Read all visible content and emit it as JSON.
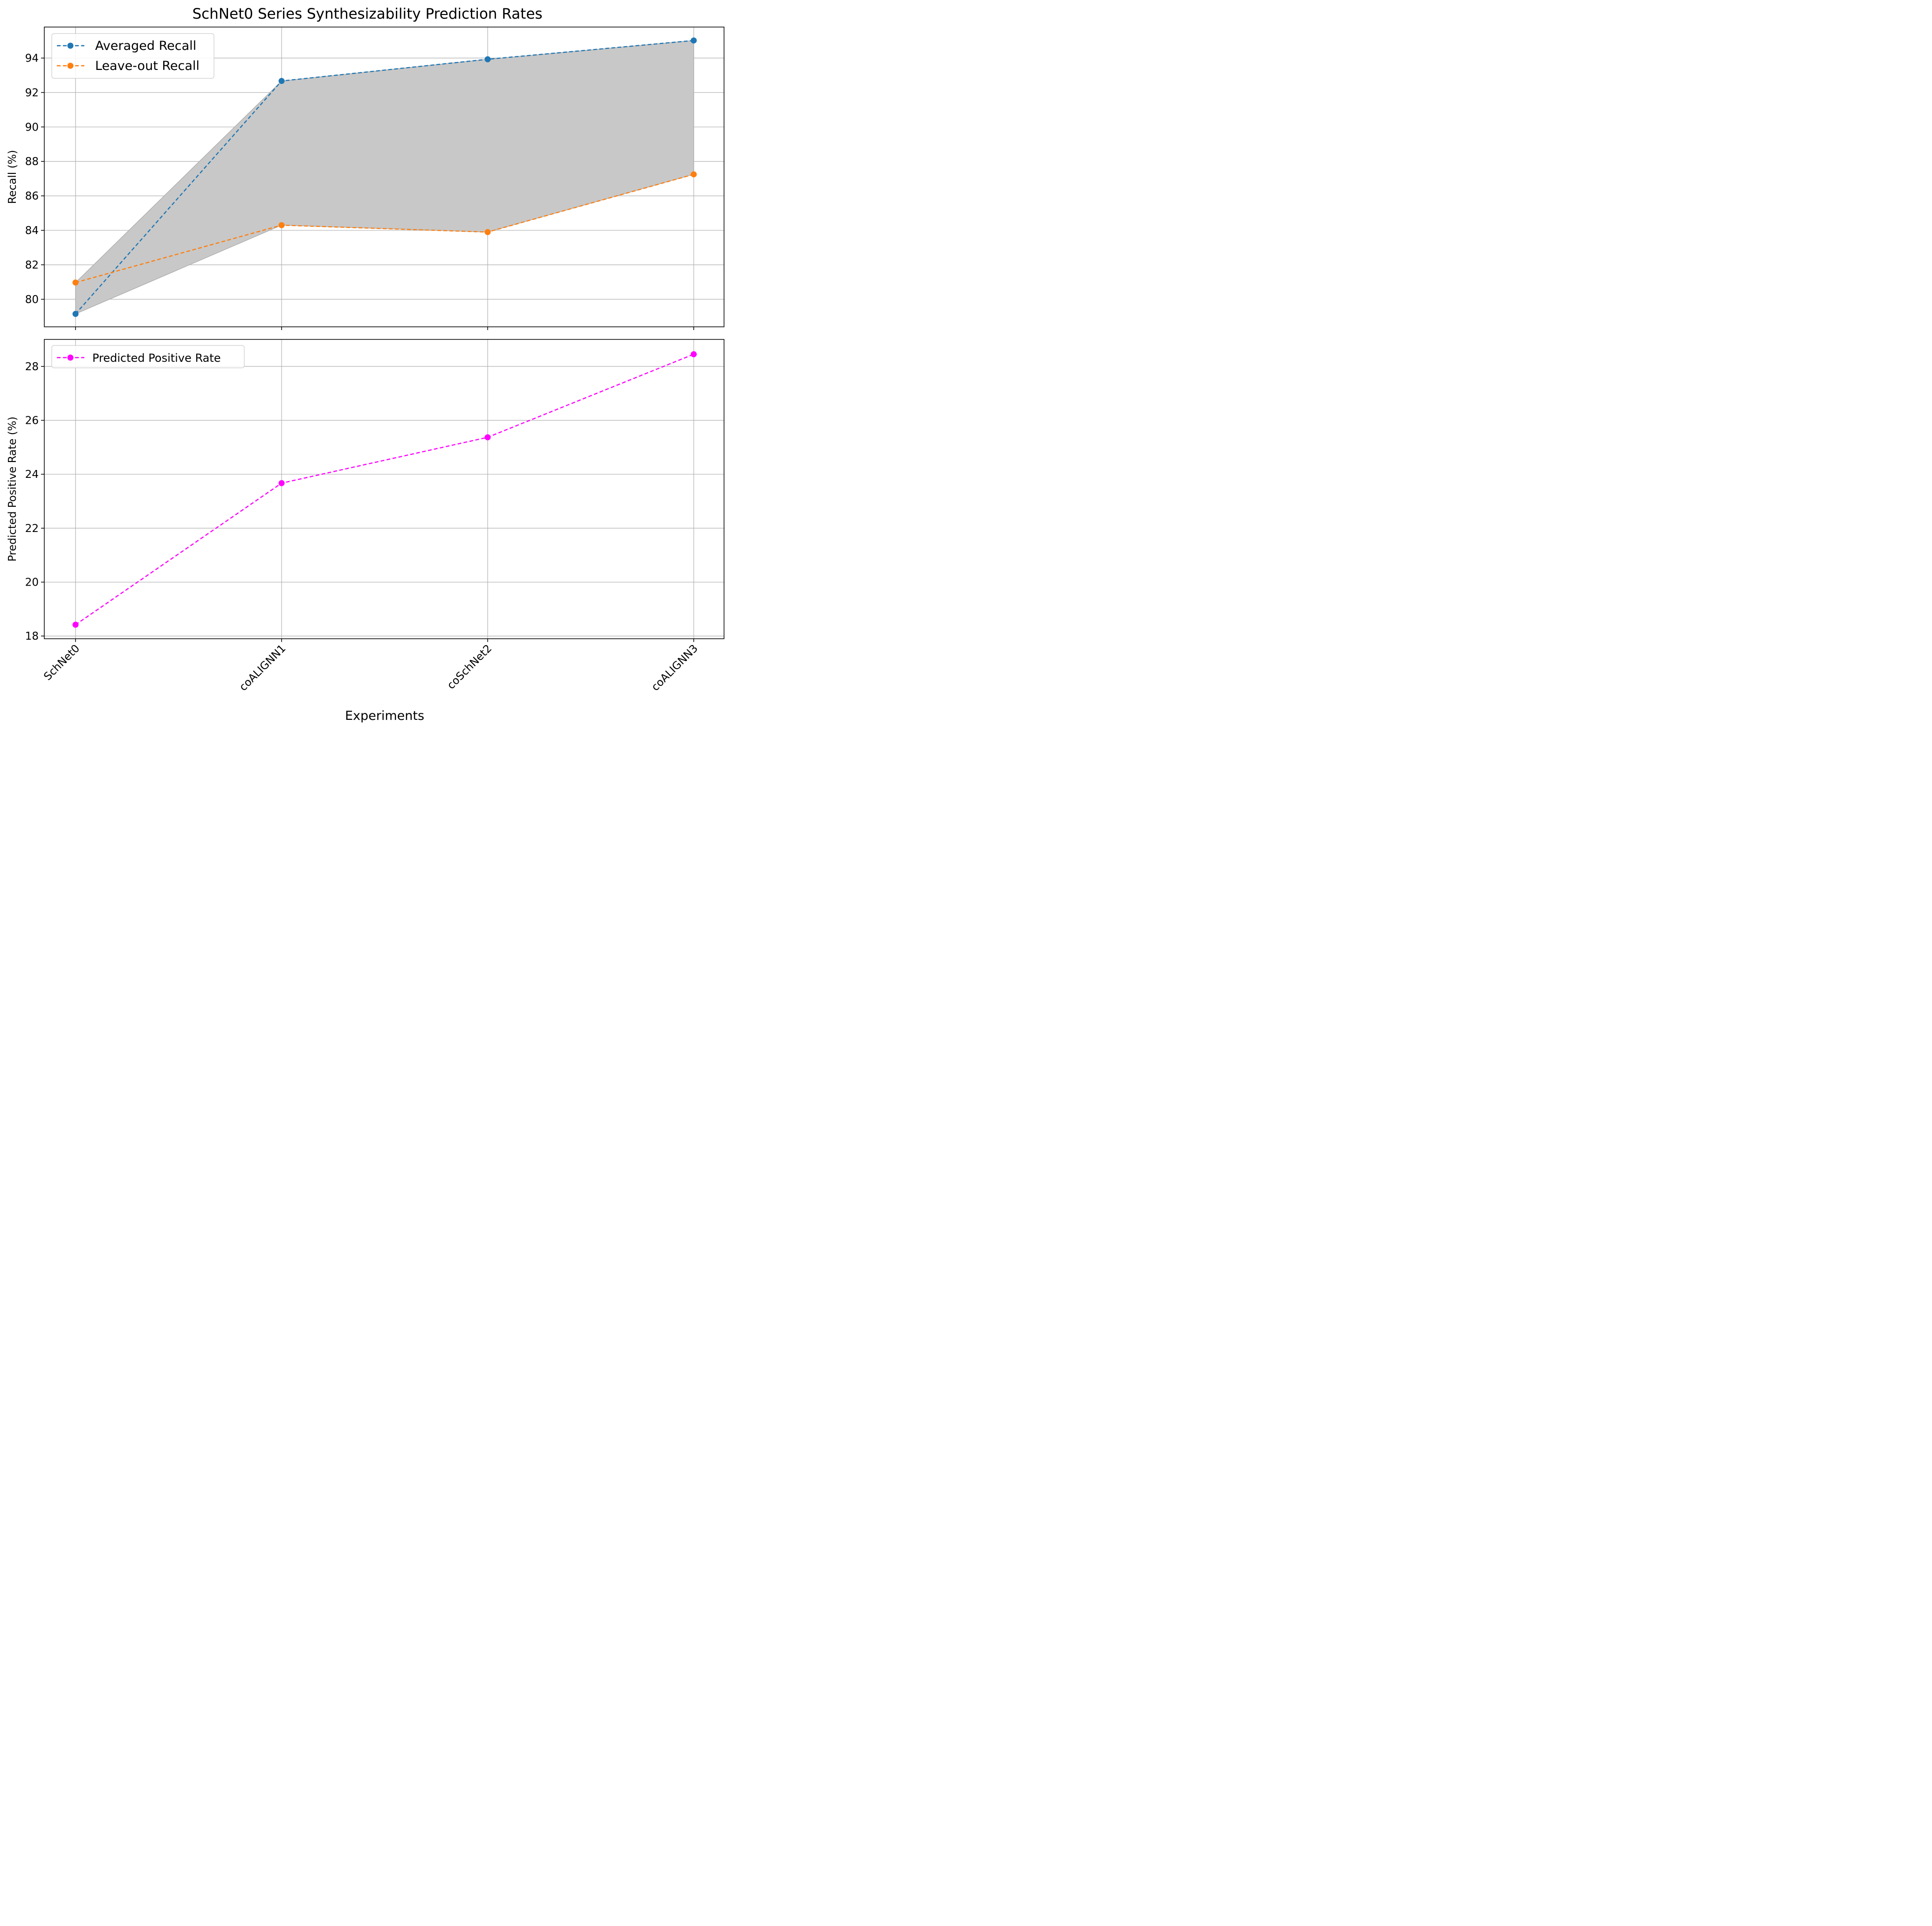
{
  "chart_data": {
    "type": "line",
    "title": "SchNet0 Series Synthesizability Prediction Rates",
    "categories": [
      "SchNet0",
      "coALIGNN1",
      "coSchNet2",
      "coALIGNN3"
    ],
    "xlabel": "Experiments",
    "panels": [
      {
        "ylabel": "Recall (%)",
        "ylim": [
          78.4,
          95.8
        ],
        "yticks": [
          80,
          82,
          84,
          86,
          88,
          90,
          92,
          94
        ],
        "grid": true,
        "fill_between": {
          "series": [
            "Averaged Recall",
            "Leave-out Recall"
          ],
          "color": "#c8c8c8"
        },
        "legend": "top-left",
        "series": [
          {
            "name": "Averaged Recall",
            "color": "#1f77b4",
            "values": [
              79.15,
              92.67,
              93.93,
              95.02
            ]
          },
          {
            "name": "Leave-out Recall",
            "color": "#ff7f0e",
            "values": [
              80.97,
              84.3,
              83.9,
              87.25
            ]
          }
        ]
      },
      {
        "ylabel": "Predicted Positive Rate (%)",
        "ylim": [
          17.9,
          29.0
        ],
        "yticks": [
          18,
          20,
          22,
          24,
          26,
          28
        ],
        "grid": true,
        "legend": "top-left",
        "series": [
          {
            "name": "Predicted Positive Rate",
            "color": "#ff00ff",
            "values": [
              18.42,
              23.67,
              25.37,
              28.45
            ]
          }
        ]
      }
    ]
  }
}
